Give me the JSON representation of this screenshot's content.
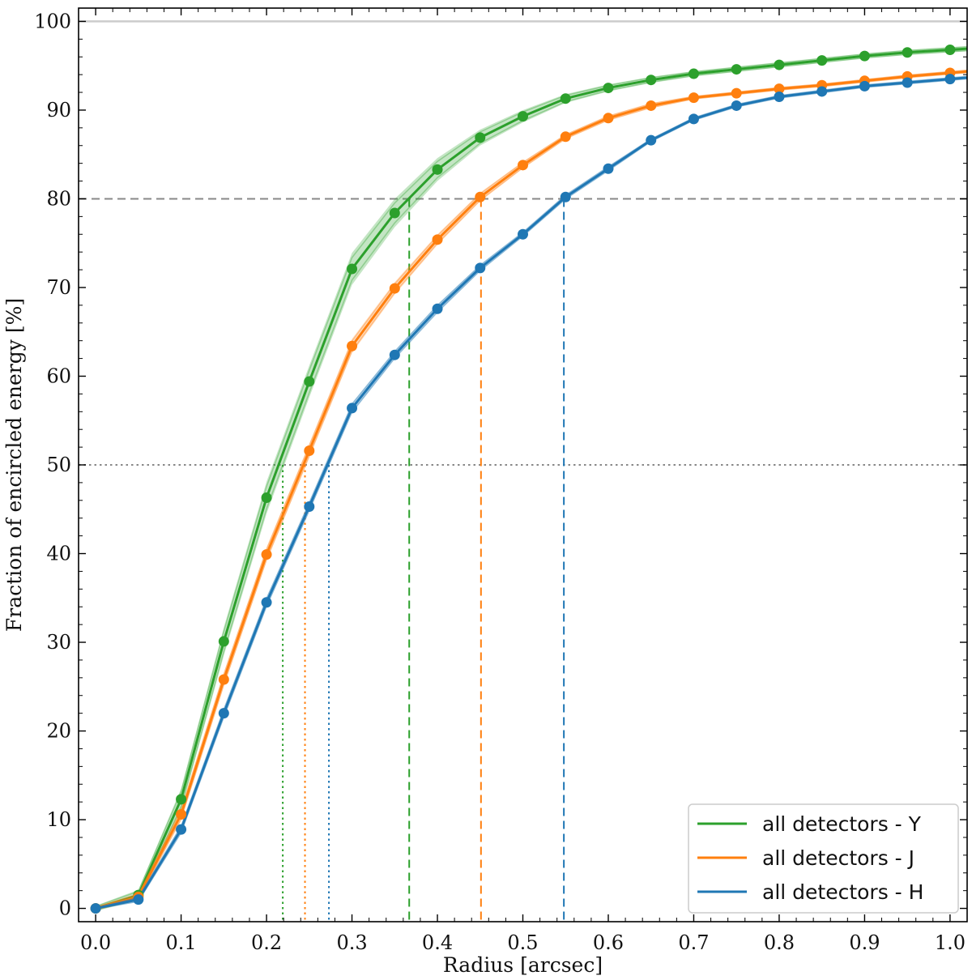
{
  "chart_data": {
    "type": "line",
    "title": "",
    "xlabel": "Radius [arcsec]",
    "ylabel": "Fraction of encircled energy [%]",
    "xlim": [
      -0.02,
      1.02
    ],
    "ylim": [
      -1.5,
      101.5
    ],
    "xticks": [
      0.0,
      0.1,
      0.2,
      0.3,
      0.4,
      0.5,
      0.6,
      0.7,
      0.8,
      0.9,
      1.0
    ],
    "xtick_labels": [
      "0.0",
      "0.1",
      "0.2",
      "0.3",
      "0.4",
      "0.5",
      "0.6",
      "0.7",
      "0.8",
      "0.9",
      "1.0"
    ],
    "yticks": [
      0,
      10,
      20,
      30,
      40,
      50,
      60,
      70,
      80,
      90,
      100
    ],
    "ytick_labels": [
      "0",
      "10",
      "20",
      "30",
      "40",
      "50",
      "60",
      "70",
      "80",
      "90",
      "100"
    ],
    "grid": false,
    "legend_position": "bottom-right",
    "x": [
      0.0,
      0.05,
      0.1,
      0.15,
      0.2,
      0.25,
      0.3,
      0.35,
      0.4,
      0.45,
      0.5,
      0.55,
      0.6,
      0.65,
      0.7,
      0.75,
      0.8,
      0.85,
      0.9,
      0.95,
      1.0
    ],
    "series": [
      {
        "name": "all detectors - Y",
        "color": "#2ca02c",
        "values": [
          0,
          1.5,
          12.3,
          30.1,
          46.3,
          59.4,
          72.1,
          78.4,
          83.3,
          86.9,
          89.3,
          91.3,
          92.5,
          93.4,
          94.1,
          94.6,
          95.1,
          95.6,
          96.1,
          96.5,
          96.8
        ],
        "band_spread": [
          0.3,
          0.6,
          1.2,
          1.6,
          1.8,
          1.8,
          1.8,
          1.6,
          1.3,
          0.9,
          0.7,
          0.5,
          0.4,
          0.35,
          0.3,
          0.3,
          0.3,
          0.3,
          0.3,
          0.3,
          0.3
        ],
        "ee50_radius": 0.219,
        "ee80_radius": 0.367
      },
      {
        "name": "all detectors - J",
        "color": "#ff7f0e",
        "values": [
          0,
          1.3,
          10.6,
          25.8,
          39.9,
          51.6,
          63.4,
          69.9,
          75.4,
          80.2,
          83.8,
          87.0,
          89.1,
          90.5,
          91.4,
          91.9,
          92.4,
          92.8,
          93.3,
          93.8,
          94.2
        ],
        "band_spread": [
          0.2,
          0.4,
          0.7,
          0.8,
          0.8,
          0.8,
          0.8,
          0.7,
          0.6,
          0.5,
          0.4,
          0.3,
          0.3,
          0.3,
          0.2,
          0.2,
          0.2,
          0.2,
          0.2,
          0.2,
          0.2
        ],
        "ee50_radius": 0.245,
        "ee80_radius": 0.451
      },
      {
        "name": "all detectors - H",
        "color": "#1f77b4",
        "values": [
          0,
          1.0,
          8.9,
          22.0,
          34.5,
          45.3,
          56.4,
          62.4,
          67.6,
          72.2,
          76.0,
          80.2,
          83.4,
          86.6,
          89.0,
          90.5,
          91.5,
          92.1,
          92.7,
          93.1,
          93.5
        ],
        "band_spread": [
          0.1,
          0.3,
          0.5,
          0.6,
          0.6,
          0.6,
          0.6,
          0.5,
          0.5,
          0.4,
          0.3,
          0.3,
          0.3,
          0.2,
          0.2,
          0.2,
          0.2,
          0.2,
          0.2,
          0.2,
          0.2
        ],
        "ee50_radius": 0.273,
        "ee80_radius": 0.548
      }
    ],
    "reference_lines": [
      {
        "y": 100,
        "style": "solid",
        "color": "#cccccc"
      },
      {
        "y": 80,
        "style": "dashed",
        "color": "#888888"
      },
      {
        "y": 50,
        "style": "dotted",
        "color": "#888888"
      }
    ]
  }
}
